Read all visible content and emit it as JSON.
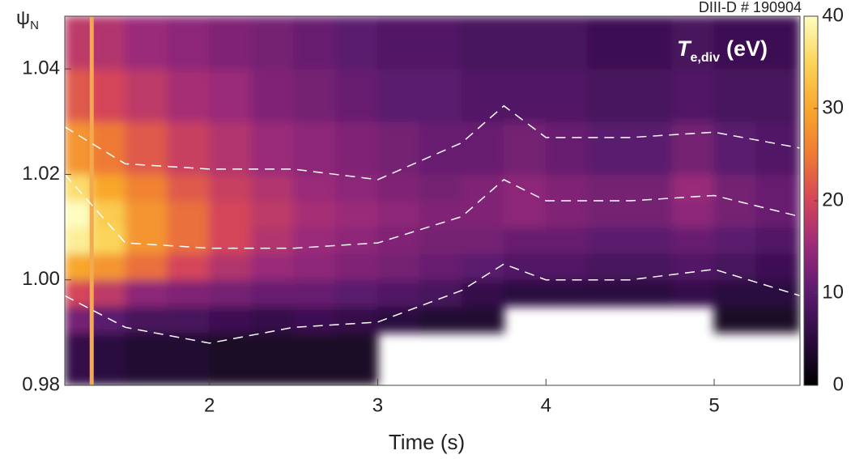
{
  "chart_data": {
    "type": "heatmap",
    "shot_label": "DIII-D # 190904",
    "x_label": "Time (s)",
    "y_label": {
      "main": "ψ",
      "sub": "N"
    },
    "colorbar_label": {
      "main": "T",
      "sub": "e,div",
      "unit": "(eV)"
    },
    "xlim": [
      1.14,
      5.51
    ],
    "ylim": [
      0.98,
      1.05
    ],
    "xticks": [
      2,
      3,
      4,
      5
    ],
    "yticks": [
      0.98,
      {
        "value": 1,
        "label": "1.00"
      },
      1.02,
      1.04
    ],
    "clim": [
      0,
      40
    ],
    "cticks": [
      0,
      10,
      20,
      30,
      40
    ],
    "colorscale": [
      [
        0,
        "#000000"
      ],
      [
        5,
        "#2b0b3f"
      ],
      [
        10,
        "#5a1a6e"
      ],
      [
        15,
        "#9a2a7a"
      ],
      [
        20,
        "#d4455a"
      ],
      [
        25,
        "#ef7a35"
      ],
      [
        30,
        "#f8a72c"
      ],
      [
        35,
        "#fbd55a"
      ],
      [
        40,
        "#fdfdc0"
      ]
    ],
    "x_edges": [
      1.14,
      1.3,
      1.5,
      1.75,
      2,
      2.25,
      2.5,
      2.75,
      3,
      3.25,
      3.5,
      3.75,
      4,
      4.25,
      4.5,
      4.75,
      5,
      5.25,
      5.51
    ],
    "y_edges": [
      0.98,
      0.99,
      0.995,
      1,
      1.005,
      1.01,
      1.015,
      1.02,
      1.03,
      1.04,
      1.05
    ],
    "values": [
      [
        6,
        12,
        20,
        30,
        38,
        40,
        36,
        28,
        22,
        18
      ],
      [
        5,
        10,
        18,
        28,
        35,
        34,
        30,
        25,
        20,
        17
      ],
      [
        4,
        8,
        14,
        24,
        28,
        28,
        26,
        22,
        18,
        15
      ],
      [
        4,
        8,
        13,
        20,
        24,
        24,
        22,
        19,
        16,
        14
      ],
      [
        3,
        7,
        12,
        17,
        20,
        20,
        19,
        17,
        15,
        13
      ],
      [
        3,
        6,
        11,
        15,
        17,
        18,
        17,
        15,
        13,
        12
      ],
      [
        3,
        7,
        11,
        14,
        15,
        16,
        15,
        14,
        12,
        11
      ],
      [
        3,
        6,
        10,
        13,
        14,
        15,
        14,
        13,
        11,
        10
      ],
      [
        null,
        5,
        9,
        12,
        13,
        14,
        13,
        12,
        10,
        9
      ],
      [
        null,
        4,
        8,
        11,
        12,
        13,
        12,
        11,
        10,
        9
      ],
      [
        null,
        4,
        6,
        10,
        12,
        13,
        13,
        11,
        9,
        8
      ],
      [
        null,
        null,
        5,
        9,
        11,
        14,
        14,
        12,
        9,
        8
      ],
      [
        null,
        null,
        5,
        9,
        11,
        13,
        13,
        11,
        9,
        8
      ],
      [
        null,
        null,
        5,
        8,
        10,
        12,
        12,
        10,
        8,
        7
      ],
      [
        null,
        null,
        5,
        8,
        10,
        12,
        12,
        10,
        8,
        7
      ],
      [
        null,
        null,
        6,
        9,
        11,
        14,
        15,
        12,
        9,
        8
      ],
      [
        null,
        3,
        5,
        8,
        10,
        12,
        12,
        10,
        8,
        7
      ],
      [
        null,
        3,
        5,
        7,
        9,
        11,
        11,
        9,
        8,
        7
      ]
    ],
    "vline": {
      "x": 1.3,
      "color": "#f2a950"
    },
    "lines": [
      {
        "color": "#ffffff",
        "x": [
          1.14,
          1.5,
          2,
          2.5,
          3,
          3.5,
          3.75,
          4,
          4.5,
          5,
          5.51
        ],
        "y": [
          1.029,
          1.022,
          1.021,
          1.021,
          1.019,
          1.026,
          1.033,
          1.027,
          1.027,
          1.028,
          1.025
        ]
      },
      {
        "color": "#ffffff",
        "x": [
          1.14,
          1.5,
          2,
          2.5,
          3,
          3.5,
          3.75,
          4,
          4.5,
          5,
          5.51
        ],
        "y": [
          1.02,
          1.007,
          1.006,
          1.006,
          1.007,
          1.012,
          1.019,
          1.015,
          1.015,
          1.016,
          1.012
        ]
      },
      {
        "color": "#ffffff",
        "x": [
          1.14,
          1.5,
          2,
          2.5,
          3,
          3.5,
          3.75,
          4,
          4.5,
          5,
          5.51
        ],
        "y": [
          0.997,
          0.991,
          0.988,
          0.991,
          0.992,
          0.998,
          1.003,
          1,
          1,
          1.002,
          0.997
        ]
      }
    ]
  }
}
